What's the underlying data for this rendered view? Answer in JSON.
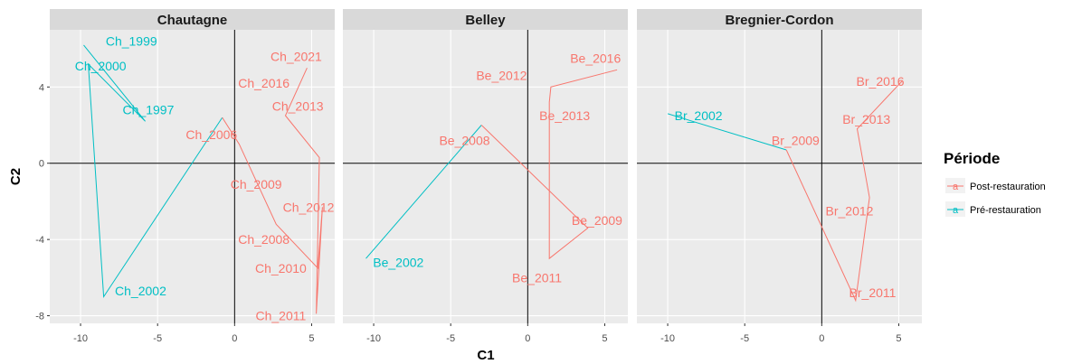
{
  "chart_data": {
    "type": "line",
    "xlabel": "C1",
    "ylabel": "C2",
    "xlim": [
      -12,
      6.5
    ],
    "ylim": [
      -8.4,
      7.0
    ],
    "xticks": [
      -10,
      -5,
      0,
      5
    ],
    "yticks": [
      -8,
      -4,
      0,
      4
    ],
    "grid": true,
    "legend_position": "right",
    "legend": {
      "title": "Période",
      "symbol": "a",
      "items": [
        {
          "group": "Post-restauration",
          "label": "Post-restauration",
          "color": "#F8766D"
        },
        {
          "group": "Pré-restauration",
          "label": "Pré-restauration",
          "color": "#00BFC4"
        }
      ]
    },
    "panels": [
      {
        "title": "Chautagne",
        "series": [
          {
            "group": "Pré-restauration",
            "points": [
              {
                "label": "Ch_1999",
                "x": -9.8,
                "y": 6.2
              },
              {
                "label": "Ch_1997",
                "x": -5.8,
                "y": 2.2
              },
              {
                "label": "Ch_2000",
                "x": -9.5,
                "y": 5.2
              },
              {
                "label": "Ch_2002",
                "x": -8.5,
                "y": -7.0
              },
              {
                "label": "Ch_2006",
                "x": -0.8,
                "y": 2.4
              }
            ]
          },
          {
            "group": "Post-restauration",
            "points": [
              {
                "label": "Ch_2006",
                "x": -0.8,
                "y": 2.4
              },
              {
                "label": "Ch_2009",
                "x": 0.3,
                "y": 1.0
              },
              {
                "label": "Ch_2008",
                "x": 2.7,
                "y": -3.2
              },
              {
                "label": "Ch_2010",
                "x": 5.4,
                "y": -5.5
              },
              {
                "label": "Ch_2012",
                "x": 5.7,
                "y": -2.3
              },
              {
                "label": "Ch_2011",
                "x": 5.3,
                "y": -7.9
              },
              {
                "label": "Ch_2013",
                "x": 5.5,
                "y": 0.3
              },
              {
                "label": "Ch_2016",
                "x": 3.3,
                "y": 2.5
              },
              {
                "label": "Ch_2021",
                "x": 4.7,
                "y": 5.0
              }
            ]
          }
        ]
      },
      {
        "title": "Belley",
        "series": [
          {
            "group": "Pré-restauration",
            "points": [
              {
                "label": "Be_2002",
                "x": -10.5,
                "y": -5.0
              },
              {
                "label": "Be_2008",
                "x": -3.0,
                "y": 2.0
              }
            ]
          },
          {
            "group": "Post-restauration",
            "points": [
              {
                "label": "Be_2008",
                "x": -3.0,
                "y": 2.0
              },
              {
                "label": "Be_2009",
                "x": 3.9,
                "y": -3.4
              },
              {
                "label": "Be_2011",
                "x": 1.4,
                "y": -5.0
              },
              {
                "label": "Be_2013",
                "x": 1.4,
                "y": 3.2
              },
              {
                "label": "Be_2012",
                "x": 1.5,
                "y": 4.0
              },
              {
                "label": "Be_2016",
                "x": 5.8,
                "y": 4.9
              }
            ]
          }
        ]
      },
      {
        "title": "Bregnier-Cordon",
        "series": [
          {
            "group": "Pré-restauration",
            "points": [
              {
                "label": "Br_2002",
                "x": -10.0,
                "y": 2.6
              },
              {
                "label": "Br_2009",
                "x": -2.3,
                "y": 0.7
              }
            ]
          },
          {
            "group": "Post-restauration",
            "points": [
              {
                "label": "Br_2009",
                "x": -2.3,
                "y": 0.7
              },
              {
                "label": "Br_2011",
                "x": 2.2,
                "y": -7.2
              },
              {
                "label": "Br_2012",
                "x": 3.1,
                "y": -1.8
              },
              {
                "label": "Br_2013",
                "x": 2.3,
                "y": 1.8
              },
              {
                "label": "Br_2016",
                "x": 5.2,
                "y": 4.3
              }
            ]
          }
        ]
      }
    ],
    "text_labels": [
      {
        "panel": 0,
        "text": "Ch_1999",
        "x": -6.7,
        "y": 6.4,
        "group": "Pré-restauration"
      },
      {
        "panel": 0,
        "text": "Ch_2000",
        "x": -8.7,
        "y": 5.1,
        "group": "Pré-restauration"
      },
      {
        "panel": 0,
        "text": "Ch_1997",
        "x": -5.6,
        "y": 2.8,
        "group": "Pré-restauration"
      },
      {
        "panel": 0,
        "text": "Ch_2002",
        "x": -6.1,
        "y": -6.7,
        "group": "Pré-restauration"
      },
      {
        "panel": 0,
        "text": "Ch_2021",
        "x": 4.0,
        "y": 5.6,
        "group": "Post-restauration"
      },
      {
        "panel": 0,
        "text": "Ch_2016",
        "x": 1.9,
        "y": 4.2,
        "group": "Post-restauration"
      },
      {
        "panel": 0,
        "text": "Ch_2013",
        "x": 4.1,
        "y": 3.0,
        "group": "Post-restauration"
      },
      {
        "panel": 0,
        "text": "Ch_2006",
        "x": -1.5,
        "y": 1.5,
        "group": "Post-restauration"
      },
      {
        "panel": 0,
        "text": "Ch_2009",
        "x": 1.4,
        "y": -1.1,
        "group": "Post-restauration"
      },
      {
        "panel": 0,
        "text": "Ch_2012",
        "x": 4.8,
        "y": -2.3,
        "group": "Post-restauration"
      },
      {
        "panel": 0,
        "text": "Ch_2008",
        "x": 1.9,
        "y": -4.0,
        "group": "Post-restauration"
      },
      {
        "panel": 0,
        "text": "Ch_2010",
        "x": 3.0,
        "y": -5.5,
        "group": "Post-restauration"
      },
      {
        "panel": 0,
        "text": "Ch_2011",
        "x": 3.0,
        "y": -8.0,
        "group": "Post-restauration"
      },
      {
        "panel": 1,
        "text": "Be_2016",
        "x": 4.4,
        "y": 5.5,
        "group": "Post-restauration"
      },
      {
        "panel": 1,
        "text": "Be_2012",
        "x": -1.7,
        "y": 4.6,
        "group": "Post-restauration"
      },
      {
        "panel": 1,
        "text": "Be_2013",
        "x": 2.4,
        "y": 2.5,
        "group": "Post-restauration"
      },
      {
        "panel": 1,
        "text": "Be_2008",
        "x": -4.1,
        "y": 1.2,
        "group": "Post-restauration"
      },
      {
        "panel": 1,
        "text": "Be_2009",
        "x": 4.5,
        "y": -3.0,
        "group": "Post-restauration"
      },
      {
        "panel": 1,
        "text": "Be_2011",
        "x": 0.6,
        "y": -6.0,
        "group": "Post-restauration"
      },
      {
        "panel": 1,
        "text": "Be_2002",
        "x": -8.4,
        "y": -5.2,
        "group": "Pré-restauration"
      },
      {
        "panel": 2,
        "text": "Br_2016",
        "x": 3.8,
        "y": 4.3,
        "group": "Post-restauration"
      },
      {
        "panel": 2,
        "text": "Br_2013",
        "x": 2.9,
        "y": 2.3,
        "group": "Post-restauration"
      },
      {
        "panel": 2,
        "text": "Br_2002",
        "x": -8.0,
        "y": 2.5,
        "group": "Pré-restauration"
      },
      {
        "panel": 2,
        "text": "Br_2009",
        "x": -1.7,
        "y": 1.2,
        "group": "Post-restauration"
      },
      {
        "panel": 2,
        "text": "Br_2012",
        "x": 1.8,
        "y": -2.5,
        "group": "Post-restauration"
      },
      {
        "panel": 2,
        "text": "Br_2011",
        "x": 3.3,
        "y": -6.8,
        "group": "Post-restauration"
      }
    ]
  }
}
